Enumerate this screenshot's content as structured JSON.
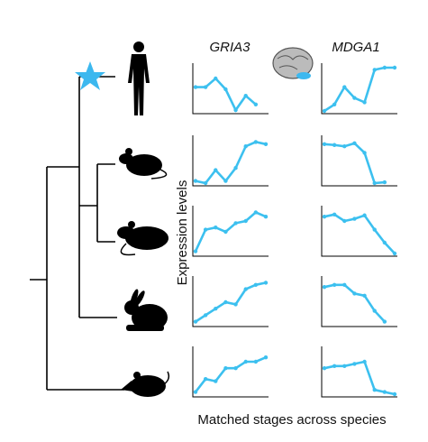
{
  "columns": [
    "GRIA3",
    "MDGA1"
  ],
  "y_label": "Expression levels",
  "x_label": "Matched stages across species",
  "chart_data": [
    {
      "type": "line",
      "color": "#3cc0ef",
      "ylim": [
        0,
        1
      ],
      "values": [
        0.55,
        0.55,
        0.75,
        0.5,
        0.02,
        0.35,
        0.15
      ]
    },
    {
      "type": "line",
      "color": "#3cc0ef",
      "ylim": [
        0,
        1
      ],
      "values": [
        0.0,
        0.15,
        0.55,
        0.3,
        0.2,
        0.95,
        1.0,
        1.0
      ]
    },
    {
      "type": "line",
      "color": "#3cc0ef",
      "ylim": [
        0,
        1
      ],
      "values": [
        0.05,
        0.0,
        0.3,
        0.05,
        0.35,
        0.85,
        0.95,
        0.9
      ]
    },
    {
      "type": "line",
      "color": "#3cc0ef",
      "ylim": [
        0,
        1
      ],
      "values": [
        0.9,
        0.88,
        0.85,
        0.92,
        0.7,
        0.0,
        0.02
      ]
    },
    {
      "type": "line",
      "color": "#3cc0ef",
      "ylim": [
        0,
        1
      ],
      "values": [
        0.05,
        0.55,
        0.6,
        0.5,
        0.7,
        0.75,
        0.95,
        0.85
      ]
    },
    {
      "type": "line",
      "color": "#3cc0ef",
      "ylim": [
        0,
        1
      ],
      "values": [
        0.85,
        0.9,
        0.75,
        0.8,
        0.88,
        0.55,
        0.25,
        0.0
      ]
    },
    {
      "type": "line",
      "color": "#3cc0ef",
      "ylim": [
        0,
        1
      ],
      "values": [
        0.05,
        0.2,
        0.35,
        0.5,
        0.45,
        0.8,
        0.9,
        0.95
      ]
    },
    {
      "type": "line",
      "color": "#3cc0ef",
      "ylim": [
        0,
        1
      ],
      "values": [
        0.85,
        0.9,
        0.9,
        0.7,
        0.65,
        0.3,
        0.05
      ]
    },
    {
      "type": "line",
      "color": "#3cc0ef",
      "ylim": [
        0,
        1
      ],
      "values": [
        0.05,
        0.35,
        0.3,
        0.6,
        0.6,
        0.75,
        0.75,
        0.85
      ]
    },
    {
      "type": "line",
      "color": "#3cc0ef",
      "ylim": [
        0,
        1
      ],
      "values": [
        0.6,
        0.65,
        0.65,
        0.7,
        0.75,
        0.1,
        0.05,
        0.0
      ]
    }
  ]
}
